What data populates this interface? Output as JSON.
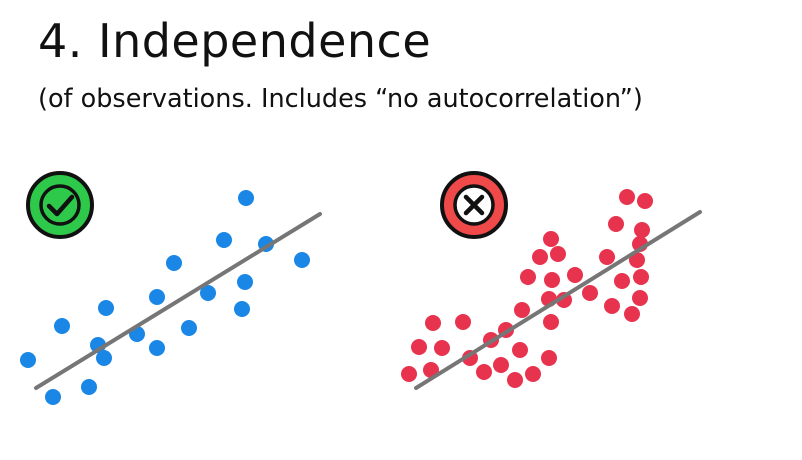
{
  "title": "4. Independence",
  "subtitle": "(of observations. Includes “no autocorrelation”)",
  "colors": {
    "good_dots": "#1a87e6",
    "bad_dots": "#e8334f",
    "line": "#767676",
    "check_badge": "#2ec94a",
    "cross_badge": "#ef4949",
    "badge_outline": "#111111"
  },
  "panels": [
    {
      "status_icon": "check-icon",
      "dots": [
        [
          28,
          360
        ],
        [
          53,
          397
        ],
        [
          89,
          387
        ],
        [
          62,
          326
        ],
        [
          98,
          345
        ],
        [
          104,
          358
        ],
        [
          106,
          308
        ],
        [
          137,
          334
        ],
        [
          157,
          348
        ],
        [
          157,
          297
        ],
        [
          174,
          263
        ],
        [
          189,
          328
        ],
        [
          208,
          293
        ],
        [
          224,
          240
        ],
        [
          242,
          309
        ],
        [
          245,
          282
        ],
        [
          246,
          198
        ],
        [
          266,
          244
        ],
        [
          302,
          260
        ]
      ],
      "trend": [
        [
          36,
          388
        ],
        [
          320,
          214
        ]
      ]
    },
    {
      "status_icon": "cross-icon",
      "dots": [
        [
          409,
          374
        ],
        [
          419,
          347
        ],
        [
          431,
          370
        ],
        [
          433,
          323
        ],
        [
          442,
          348
        ],
        [
          463,
          322
        ],
        [
          470,
          358
        ],
        [
          484,
          372
        ],
        [
          491,
          340
        ],
        [
          501,
          365
        ],
        [
          506,
          330
        ],
        [
          515,
          380
        ],
        [
          520,
          350
        ],
        [
          522,
          310
        ],
        [
          528,
          277
        ],
        [
          533,
          374
        ],
        [
          540,
          257
        ],
        [
          549,
          358
        ],
        [
          549,
          299
        ],
        [
          551,
          322
        ],
        [
          551,
          239
        ],
        [
          552,
          280
        ],
        [
          558,
          254
        ],
        [
          564,
          300
        ],
        [
          575,
          275
        ],
        [
          590,
          293
        ],
        [
          607,
          257
        ],
        [
          612,
          306
        ],
        [
          616,
          224
        ],
        [
          622,
          281
        ],
        [
          627,
          197
        ],
        [
          632,
          314
        ],
        [
          637,
          260
        ],
        [
          640,
          244
        ],
        [
          640,
          298
        ],
        [
          641,
          277
        ],
        [
          645,
          201
        ],
        [
          642,
          230
        ]
      ],
      "trend": [
        [
          416,
          388
        ],
        [
          700,
          212
        ]
      ]
    }
  ]
}
